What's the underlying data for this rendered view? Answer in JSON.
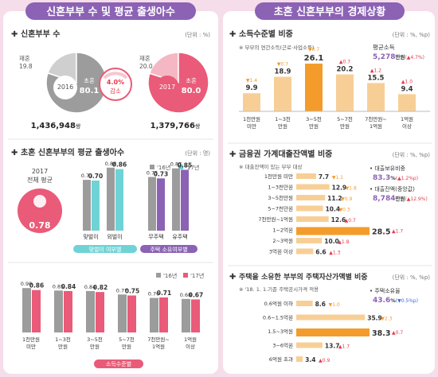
{
  "colors": {
    "purple": "#8b62b4",
    "pink": "#e95b78",
    "gray": "#9c9c9c",
    "teal": "#6fd3d6",
    "orange": "#f39c2c",
    "lightorange": "#f7cf96",
    "panel": "#ffffff",
    "bg": "#f6ddea",
    "red": "#e43a4b"
  },
  "left": {
    "header": "신혼부부 수 및 평균 출생아수",
    "couples": {
      "title": "신혼부부 수",
      "unit": "(단위 : %)",
      "pie2016": {
        "year": "2016",
        "label_first": "초혼",
        "first": "80.1",
        "label_re": "재혼",
        "re": "19.8",
        "total": "1,436,948",
        "suffix": "쌍"
      },
      "pie2017": {
        "year": "2017",
        "label_first": "초혼",
        "first": "80.0",
        "label_re": "재혼",
        "re": "20.0",
        "total": "1,379,766",
        "suffix": "쌍"
      },
      "change": {
        "value": "4.0%",
        "label": "감소"
      }
    },
    "births": {
      "title": "초혼 신혼부부의 평균 출생아수",
      "unit": "(단위 : 명)",
      "legend": [
        "'16년",
        "'17년"
      ],
      "overall": {
        "label_year": "2017",
        "label": "전체 평균",
        "value": "0.78"
      },
      "dual": {
        "caption": "맞벌이 여부별",
        "categories": [
          "맞벌이",
          "외벌이"
        ],
        "v16": [
          0.71,
          0.88
        ],
        "v17": [
          0.7,
          0.86
        ]
      },
      "house": {
        "caption": "주택 소유여부별",
        "categories": [
          "무주택",
          "유주택"
        ],
        "v16": [
          0.75,
          0.87
        ],
        "v17": [
          0.73,
          0.85
        ]
      }
    },
    "income_births": {
      "legend": [
        "'16년",
        "'17년"
      ],
      "caption": "소득수준별",
      "categories": [
        "1천만원\n미만",
        "1~3천\n만원",
        "3~5천\n만원",
        "5~7천\n만원",
        "7천만원~\n1억원",
        "1억원\n이상"
      ]
    }
  },
  "right": {
    "header": "초혼 신혼부부의 경제상황",
    "income": {
      "title": "소득수준별 비중",
      "unit": "(단위 : %, %p)",
      "note": "※ 부부의 연간소득(근로·사업소득)",
      "avg_label": "평균소득",
      "avg_value": "5,278",
      "avg_unit": "만원",
      "avg_change": "(▲4.7%)",
      "changes": [
        "▼1.4",
        "▼0.7",
        "▼0.7",
        "▲0.7",
        "▲1.2",
        "▲1.0"
      ]
    },
    "loan": {
      "title": "금융권 가계대출잔액별 비중",
      "unit": "(단위 : %, %p)",
      "note": "※ 대출잔액이 있는 부부 대상",
      "holding_label": "• 대출보유비중",
      "holding_value": "83.3",
      "holding_unit": "%",
      "holding_change": "(▲1.2%p)",
      "median_label": "• 대출잔액(중앙값)",
      "median_value": "8,784",
      "median_unit": "만원",
      "median_change": "(▲12.9%)"
    },
    "housing": {
      "title": "주택을 소유한 부부의 주택자산가액별 비중",
      "unit": "(단위 : %, %p)",
      "note": "※ '18. 1. 1.기준 주택공시가격 적용",
      "own_label": "• 주택소유율",
      "own_value": "43.6",
      "own_unit": "%",
      "own_change": "(▼0.5%p)"
    }
  },
  "chart_data": [
    {
      "type": "pie",
      "title": "2016",
      "categories": [
        "초혼",
        "재혼"
      ],
      "values": [
        80.1,
        19.8
      ]
    },
    {
      "type": "pie",
      "title": "2017",
      "categories": [
        "초혼",
        "재혼"
      ],
      "values": [
        80.0,
        20.0
      ]
    },
    {
      "type": "bar",
      "categories": [
        "맞벌이",
        "외벌이"
      ],
      "series": [
        {
          "name": "'16년",
          "values": [
            0.71,
            0.88
          ]
        },
        {
          "name": "'17년",
          "values": [
            0.7,
            0.86
          ]
        }
      ]
    },
    {
      "type": "bar",
      "categories": [
        "무주택",
        "유주택"
      ],
      "series": [
        {
          "name": "'16년",
          "values": [
            0.75,
            0.87
          ]
        },
        {
          "name": "'17년",
          "values": [
            0.73,
            0.85
          ]
        }
      ]
    },
    {
      "type": "bar",
      "categories": [
        "1천만원 미만",
        "1~3천 만원",
        "3~5천 만원",
        "5~7천 만원",
        "7천만원~ 1억원",
        "1억원 이상"
      ],
      "series": [
        {
          "name": "'16년",
          "values": [
            0.9,
            0.85,
            0.84,
            0.77,
            0.7,
            0.68
          ]
        },
        {
          "name": "'17년",
          "values": [
            0.86,
            0.84,
            0.82,
            0.75,
            0.71,
            0.67
          ]
        }
      ]
    },
    {
      "type": "bar",
      "categories": [
        "1천만원 미만",
        "1~3천 만원",
        "3~5천 만원",
        "5~7천 만원",
        "7천만원~ 1억원",
        "1억원 이상"
      ],
      "values": [
        9.9,
        18.9,
        26.1,
        20.2,
        15.5,
        9.4
      ]
    },
    {
      "type": "bar",
      "categories": [
        "1천만원 미만",
        "1~3천만원",
        "3~5천만원",
        "5~7천만원",
        "7천만원~1억원",
        "1~2억원",
        "2~3억원",
        "3억원 이상"
      ],
      "values": [
        7.7,
        12.9,
        11.2,
        10.4,
        12.6,
        28.5,
        10.0,
        6.6
      ],
      "changes": [
        "▼1.1",
        "▼1.8",
        "▼0.9",
        "▼0.3",
        "▲0.7",
        "▲1.7",
        "▲1.8",
        "▲1.3"
      ]
    },
    {
      "type": "bar",
      "categories": [
        "0.6억원 이하",
        "0.6~1.5억원",
        "1.5~3억원",
        "3~6억원",
        "6억원 초과"
      ],
      "values": [
        8.6,
        35.9,
        38.3,
        13.7,
        3.4
      ],
      "changes": [
        "▼1.0",
        "▼2.3",
        "▲0.7",
        "▲1.7",
        "▲0.9"
      ]
    }
  ]
}
